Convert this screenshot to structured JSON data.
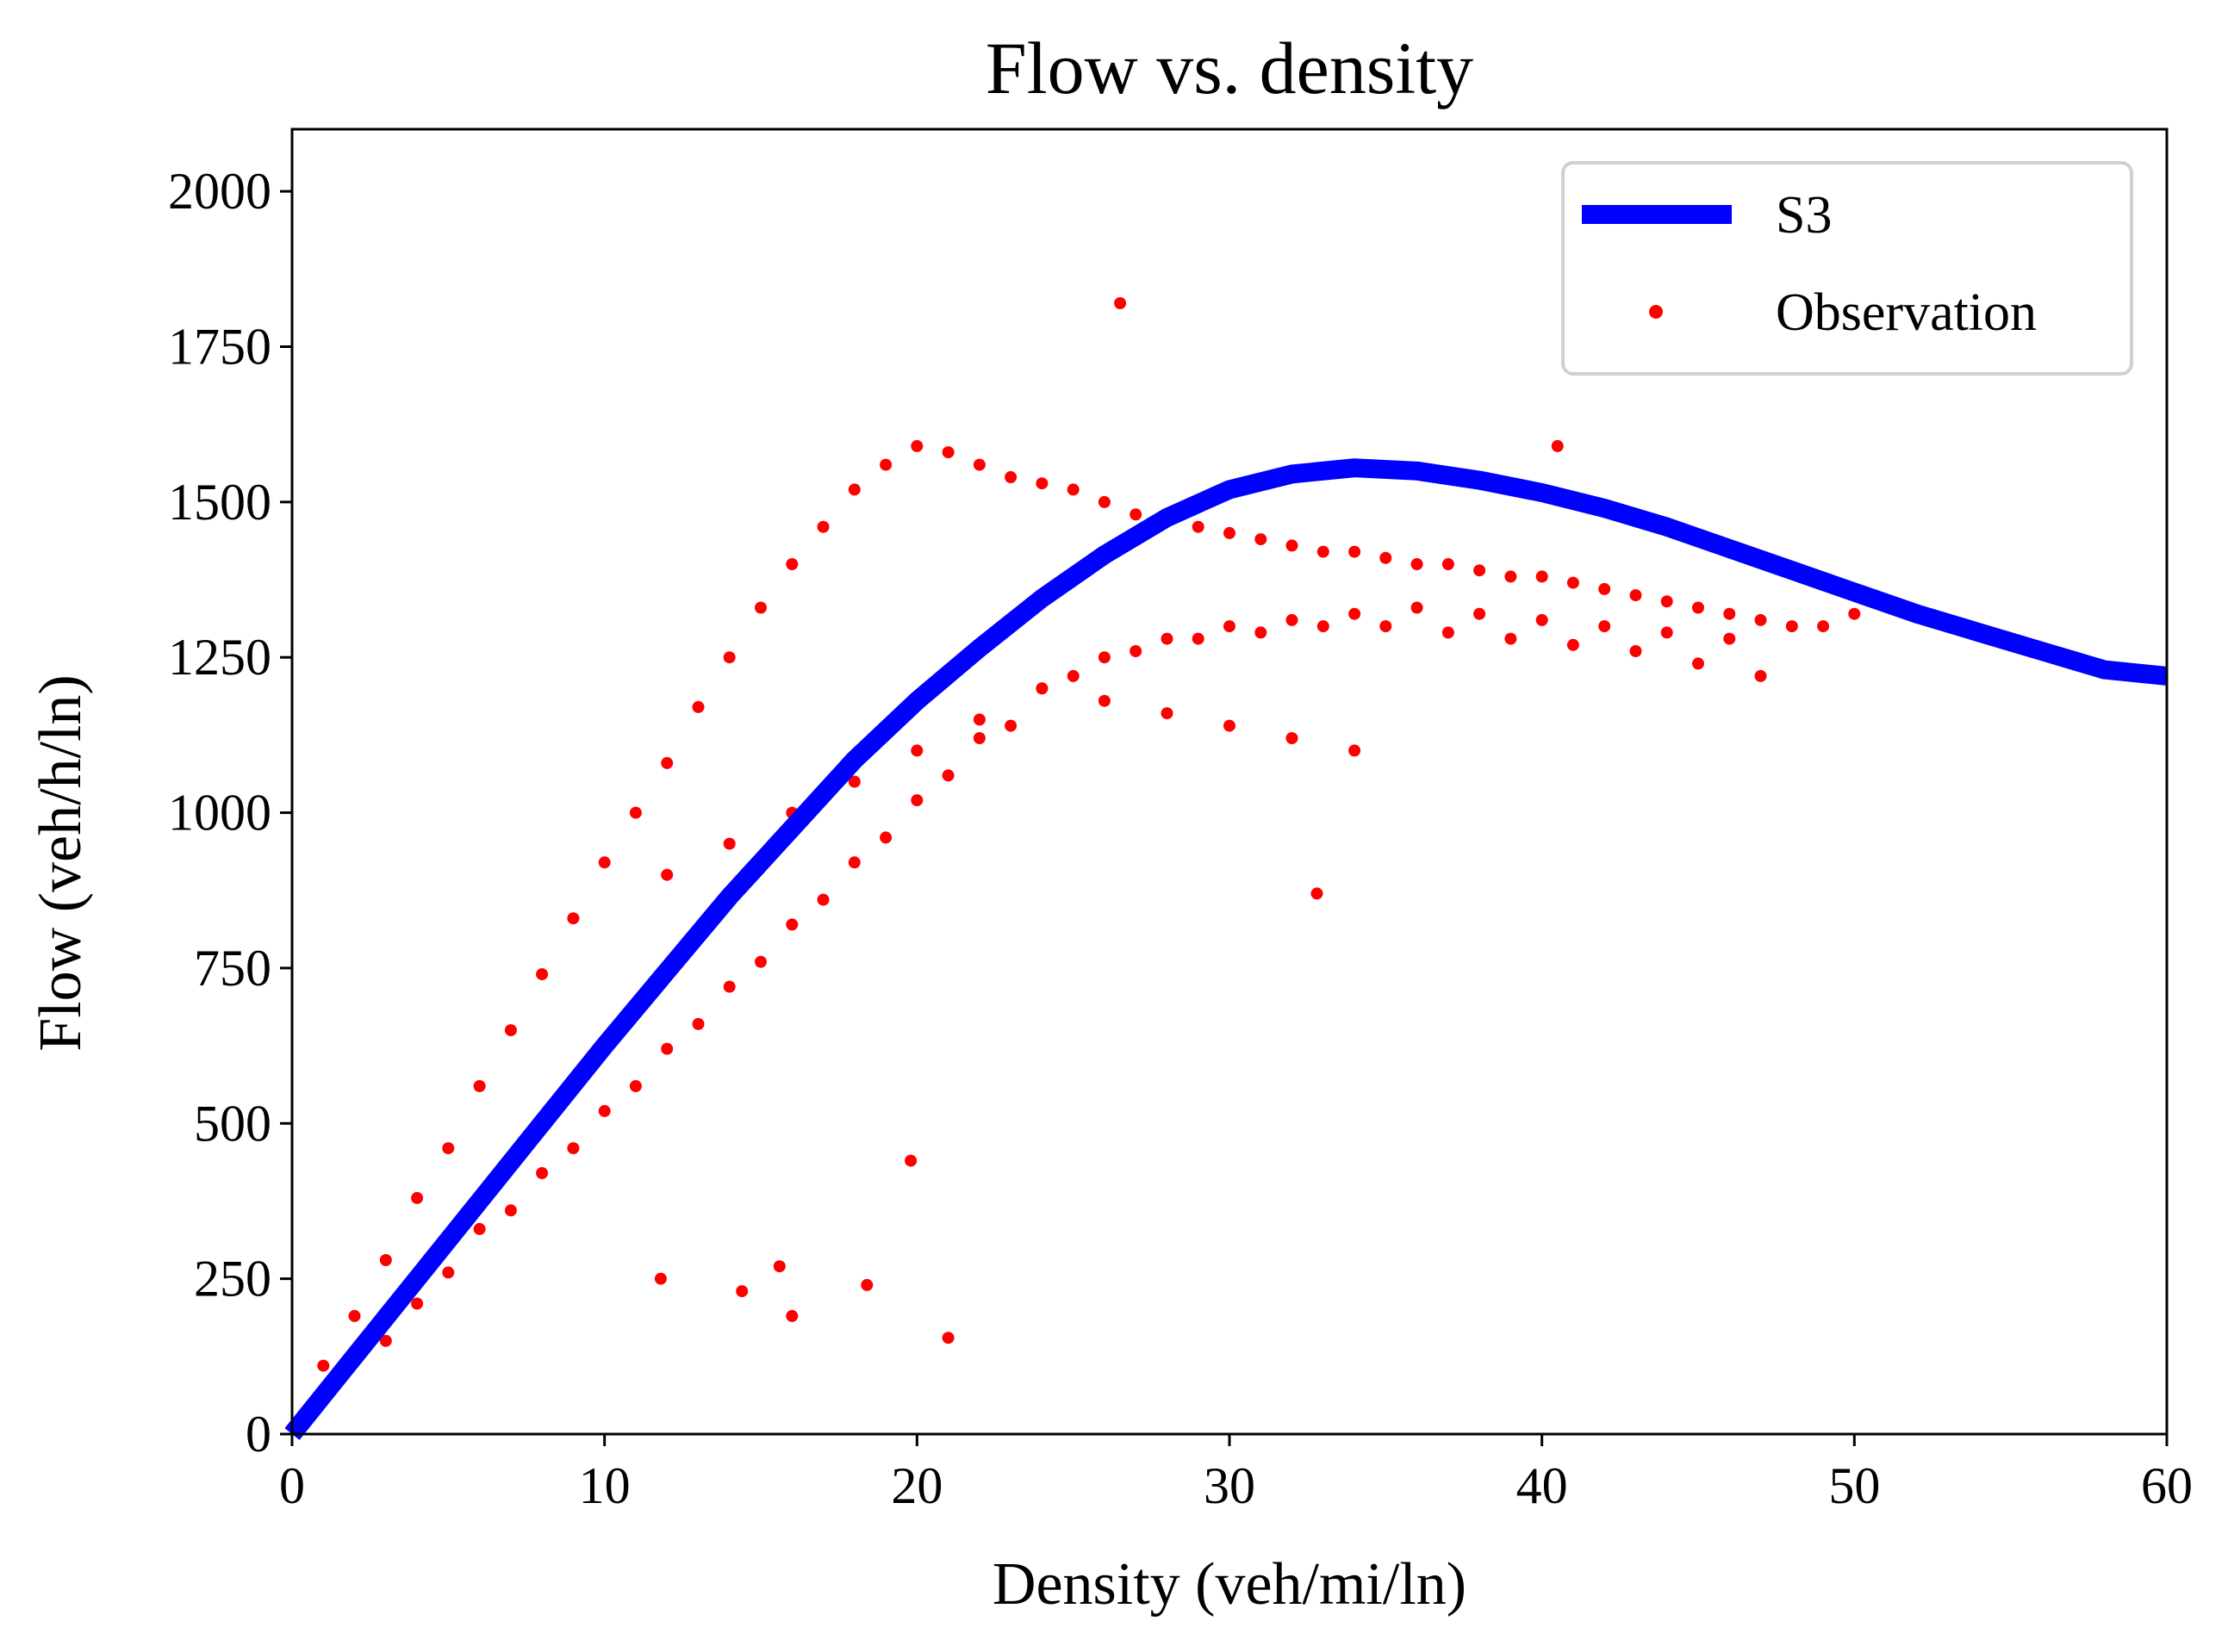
{
  "chart_data": {
    "type": "scatter",
    "title": "Flow vs. density",
    "xlabel": "Density (veh/mi/ln)",
    "ylabel": "Flow (veh/h/ln)",
    "xlim": [
      0,
      60
    ],
    "ylim": [
      0,
      2100
    ],
    "x_ticks": [
      "0",
      "10",
      "20",
      "30",
      "40",
      "50",
      "60"
    ],
    "y_ticks": [
      "0",
      "250",
      "500",
      "750",
      "1000",
      "1250",
      "1500",
      "1750",
      "2000"
    ],
    "grid": false,
    "legend_placement": "top-right",
    "series": [
      {
        "name": "S3",
        "kind": "line",
        "color": "#0000ff",
        "x": [
          0,
          2,
          4,
          6,
          8,
          10,
          12,
          14,
          16,
          18,
          20,
          22,
          24,
          26,
          28,
          30,
          32,
          34,
          36,
          38,
          40,
          42,
          44,
          46,
          48,
          50,
          52,
          54,
          56,
          58,
          60
        ],
        "y": [
          0,
          125,
          250,
          375,
          500,
          625,
          745,
          865,
          975,
          1085,
          1180,
          1265,
          1345,
          1415,
          1475,
          1520,
          1545,
          1555,
          1550,
          1535,
          1515,
          1490,
          1460,
          1425,
          1390,
          1355,
          1320,
          1290,
          1260,
          1230,
          1220
        ]
      },
      {
        "name": "Observation",
        "kind": "scatter",
        "color": "#ff0000",
        "x": [
          1,
          2,
          3,
          4,
          5,
          6,
          7,
          8,
          9,
          10,
          11,
          12,
          13,
          14,
          15,
          16,
          17,
          18,
          19,
          20,
          21,
          22,
          23,
          24,
          25,
          26,
          27,
          28,
          29,
          30,
          31,
          32,
          33,
          34,
          35,
          36,
          37,
          38,
          39,
          40,
          41,
          42,
          43,
          44,
          45,
          46,
          47,
          48,
          49,
          50,
          2,
          4,
          6,
          8,
          10,
          12,
          14,
          16,
          18,
          20,
          22,
          24,
          26,
          28,
          30,
          32,
          34,
          36,
          38,
          40,
          42,
          44,
          46,
          3,
          5,
          7,
          9,
          11,
          13,
          15,
          17,
          19,
          21,
          23,
          25,
          27,
          29,
          31,
          33,
          35,
          37,
          39,
          41,
          43,
          45,
          47,
          12,
          14,
          16,
          18,
          20,
          22,
          24,
          26,
          28,
          30,
          32,
          34,
          11.8,
          14.4,
          16,
          18.4,
          21,
          15.6,
          19.8,
          26.5,
          32.8,
          40.5
        ],
        "y": [
          110,
          190,
          280,
          380,
          460,
          560,
          650,
          740,
          830,
          920,
          1000,
          1080,
          1170,
          1250,
          1330,
          1400,
          1460,
          1520,
          1560,
          1590,
          1580,
          1560,
          1540,
          1530,
          1520,
          1500,
          1480,
          1470,
          1460,
          1450,
          1440,
          1430,
          1420,
          1420,
          1410,
          1400,
          1400,
          1390,
          1380,
          1380,
          1370,
          1360,
          1350,
          1340,
          1330,
          1320,
          1310,
          1300,
          1300,
          1320,
          130,
          210,
          330,
          420,
          520,
          620,
          720,
          820,
          920,
          1020,
          1120,
          1200,
          1250,
          1280,
          1300,
          1310,
          1320,
          1330,
          1320,
          1310,
          1300,
          1290,
          1280,
          150,
          260,
          360,
          460,
          560,
          660,
          760,
          860,
          960,
          1060,
          1140,
          1220,
          1260,
          1280,
          1290,
          1300,
          1300,
          1290,
          1280,
          1270,
          1260,
          1240,
          1220,
          900,
          950,
          1000,
          1050,
          1100,
          1150,
          1200,
          1180,
          1160,
          1140,
          1120,
          1100,
          250,
          230,
          190,
          240,
          155,
          270,
          440,
          1820,
          870,
          1590
        ]
      }
    ],
    "legend": [
      {
        "label": "S3",
        "marker": "line",
        "color": "#0000ff"
      },
      {
        "label": "Observation",
        "marker": "dot",
        "color": "#ff0000"
      }
    ]
  }
}
